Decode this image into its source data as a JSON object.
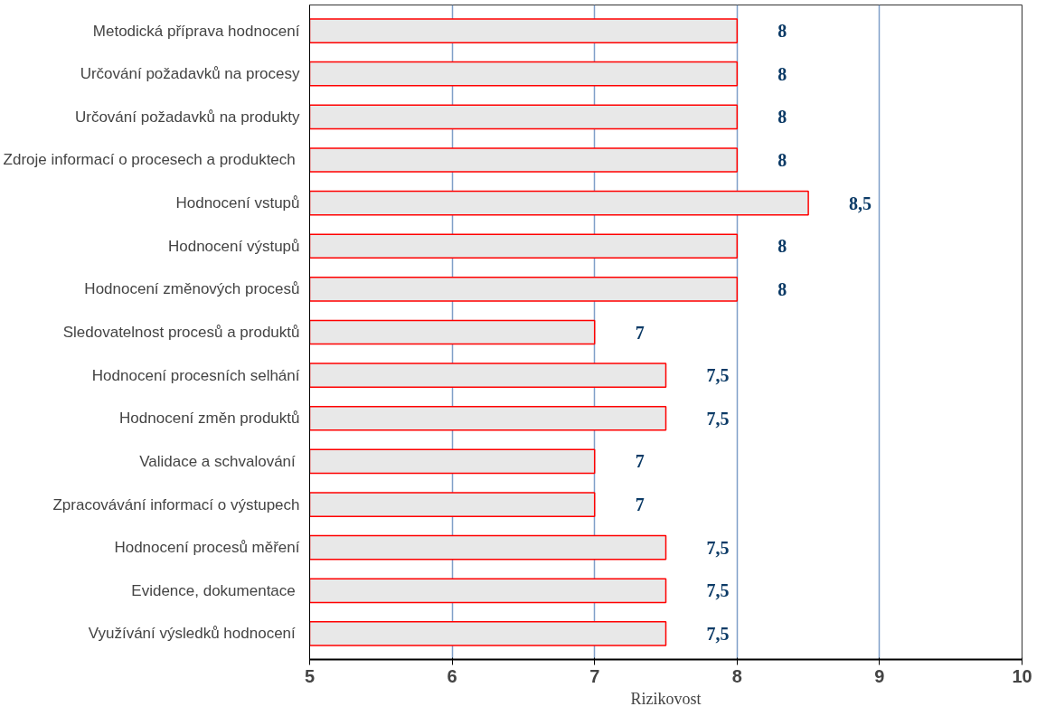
{
  "chart_data": {
    "type": "bar",
    "orientation": "horizontal",
    "xlabel": "Rizikovost",
    "categories": [
      "Metodická příprava hodnocení",
      "Určování požadavků na procesy",
      "Určování požadavků na produkty",
      "Zdroje informací o procesech a produktech ",
      "Hodnocení vstupů",
      "Hodnocení výstupů",
      "Hodnocení změnových procesů",
      "Sledovatelnost procesů a produktů",
      "Hodnocení procesních selhání",
      "Hodnocení změn produktů",
      "Validace a schvalování ",
      "Zpracovávání informací o výstupech",
      "Hodnocení procesů měření",
      "Evidence, dokumentace ",
      "Využívání výsledků hodnocení "
    ],
    "values": [
      8,
      8,
      8,
      8,
      8.5,
      8,
      8,
      7,
      7.5,
      7.5,
      7,
      7,
      7.5,
      7.5,
      7.5
    ],
    "value_labels": [
      "8",
      "8",
      "8",
      "8",
      "8,5",
      "8",
      "8",
      "7",
      "7,5",
      "7,5",
      "7",
      "7",
      "7,5",
      "7,5",
      "7,5"
    ],
    "color": "#e8e8e8",
    "xlim": [
      5,
      10
    ],
    "xticks": [
      5,
      6,
      7,
      8,
      9,
      10
    ],
    "grid": "x"
  }
}
